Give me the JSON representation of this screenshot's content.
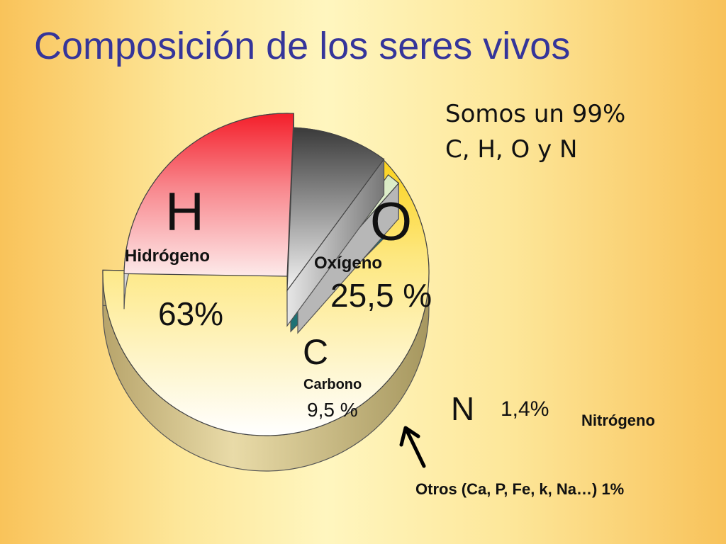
{
  "title": "Composición de los seres vivos",
  "note": [
    "Somos un 99%",
    "C, H, O y N"
  ],
  "chart_data": {
    "type": "pie",
    "three_d": true,
    "exploded": true,
    "slices": [
      {
        "symbol": "H",
        "name": "Hidrógeno",
        "value": 63,
        "label": "63%",
        "color": "#fcd530"
      },
      {
        "symbol": "O",
        "name": "Oxígeno",
        "value": 25.5,
        "label": "25,5 %",
        "color": "#f41e2a"
      },
      {
        "symbol": "C",
        "name": "Carbono",
        "value": 9.5,
        "label": "9,5 %",
        "color": "#3a3a3a"
      },
      {
        "symbol": "N",
        "name": "Nitrógeno",
        "value": 1.4,
        "label": "1,4%",
        "color": "#d6e9c4"
      },
      {
        "symbol": "",
        "name": "Otros (Ca, P, Fe, k, Na…)",
        "value": 1,
        "label": "1%",
        "color": "#2a9ca0"
      }
    ],
    "otros_text": "Otros (Ca, P, Fe, k, Na…)  1%"
  }
}
